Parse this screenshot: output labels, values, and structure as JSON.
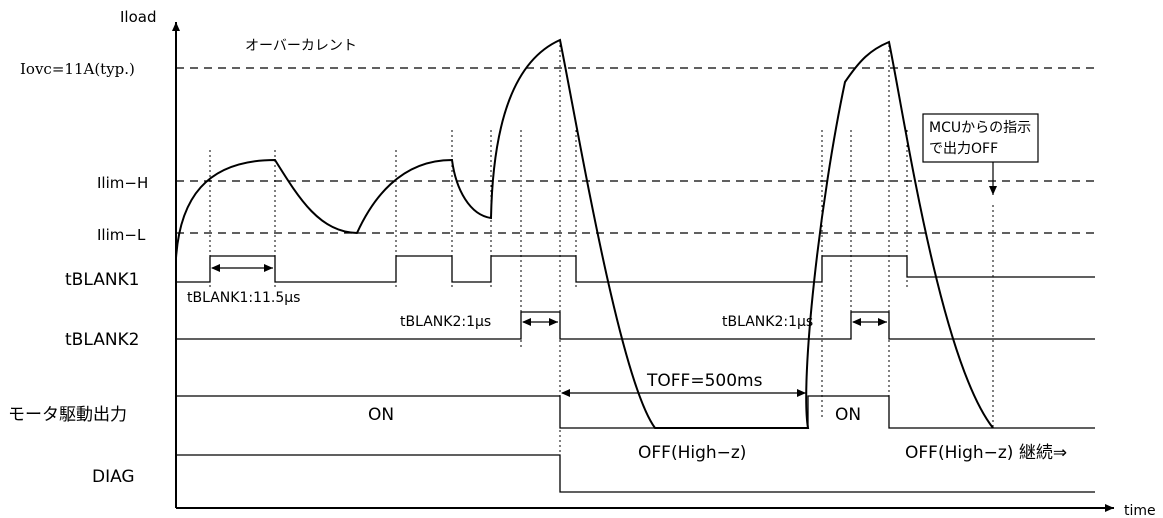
{
  "axes": {
    "y_label": "Iload",
    "x_label": "time"
  },
  "levels": {
    "iovc": "Iovc=11A(typ.)",
    "ilim_h": "Ilim−H",
    "ilim_l": "Ilim−L"
  },
  "signals": {
    "tblank1": "tBLANK1",
    "tblank2": "tBLANK2",
    "motor_out": "モータ駆動出力",
    "diag": "DIAG"
  },
  "annotations": {
    "overcurrent": "オーバーカレント",
    "tblank1_dur": "tBLANK1:11.5μs",
    "tblank2_dur_1": "tBLANK2:1μs",
    "tblank2_dur_2": "tBLANK2:1μs",
    "toff": "TOFF=500ms",
    "on_1": "ON",
    "on_2": "ON",
    "off_1": "OFF(High−z)",
    "off_2": "OFF(High−z) 継続⇒",
    "mcu_line1": "MCUからの指示",
    "mcu_line2": "で出力OFF"
  }
}
